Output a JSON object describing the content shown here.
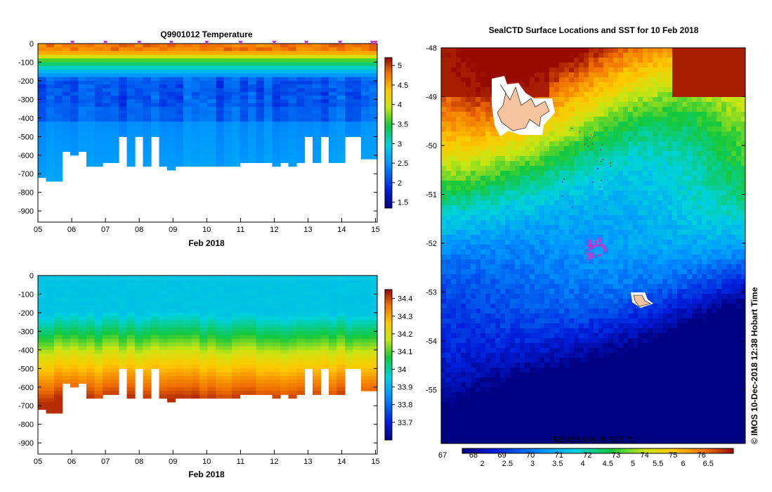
{
  "chart_data": [
    {
      "type": "heatmap",
      "title": "Q9901012  Temperature",
      "xlabel": "Feb 2018",
      "x_ticks": [
        "05",
        "06",
        "07",
        "08",
        "09",
        "10",
        "11",
        "12",
        "13",
        "14",
        "15"
      ],
      "y_ticks": [
        0,
        -100,
        -200,
        -300,
        -400,
        -500,
        -600,
        -700,
        -800,
        -900
      ],
      "ylim": [
        -960,
        0
      ],
      "xlim": [
        5,
        15.05
      ],
      "colorbar": {
        "range": [
          1.35,
          5.2
        ],
        "ticks": [
          "1.5",
          "2",
          "2.5",
          "3",
          "3.5",
          "4",
          "4.5",
          "5"
        ],
        "tick_values": [
          1.5,
          2,
          2.5,
          3,
          3.5,
          4,
          4.5,
          5
        ]
      },
      "profiles_max_depth": [
        720,
        735,
        735,
        580,
        585,
        580,
        660,
        660,
        640,
        640,
        500,
        660,
        500,
        660,
        500,
        660,
        665,
        660,
        650,
        650,
        650,
        650,
        650,
        650,
        650,
        640,
        640,
        640,
        640,
        645,
        640,
        645,
        640,
        500,
        640,
        500,
        640,
        640,
        500,
        500,
        620,
        620
      ],
      "profile_markers": [
        6.02,
        7.0,
        8.0,
        8.95,
        10.0,
        11.0,
        12.0,
        12.95,
        13.95,
        14.9,
        15.0
      ]
    },
    {
      "type": "heatmap",
      "title": "",
      "xlabel": "Feb 2018",
      "x_ticks": [
        "05",
        "06",
        "07",
        "08",
        "09",
        "10",
        "11",
        "12",
        "13",
        "14",
        "15"
      ],
      "y_ticks": [
        0,
        -100,
        -200,
        -300,
        -400,
        -500,
        -600,
        -700,
        -800,
        -900
      ],
      "ylim": [
        -960,
        0
      ],
      "xlim": [
        5,
        15.05
      ],
      "colorbar": {
        "range": [
          33.6,
          34.45
        ],
        "ticks": [
          "33.7",
          "33.8",
          "33.9",
          "34",
          "34.1",
          "34.2",
          "34.3",
          "34.4"
        ],
        "tick_values": [
          33.7,
          33.8,
          33.9,
          34,
          34.1,
          34.2,
          34.3,
          34.4
        ]
      }
    },
    {
      "type": "heatmap",
      "title": "SealCTD Surface Locations and SST for 10 Feb 2018",
      "lat_ticks": [
        "-48",
        "-49",
        "-50",
        "-51",
        "-52",
        "-53",
        "-54",
        "-55"
      ],
      "lat_range": [
        -56.1,
        -48.0
      ],
      "sst_label": "REMSS MW-IR SST °C",
      "colorbar_c": {
        "range": [
          1.6,
          7.0
        ],
        "ticks": [
          "2",
          "2.5",
          "3",
          "3.5",
          "4",
          "4.5",
          "5",
          "5.5",
          "6",
          "6.5"
        ]
      },
      "colorbar_f": {
        "ticks": [
          "67",
          "68",
          "69",
          "70",
          "71",
          "72",
          "73",
          "74",
          "75",
          "76"
        ]
      },
      "copyright": "© IMOS 10-Dec-2018 12:38 Hobart Time"
    }
  ],
  "theme": {
    "marker_color": "#cc33cc",
    "land_color": "#f7c4a0"
  }
}
